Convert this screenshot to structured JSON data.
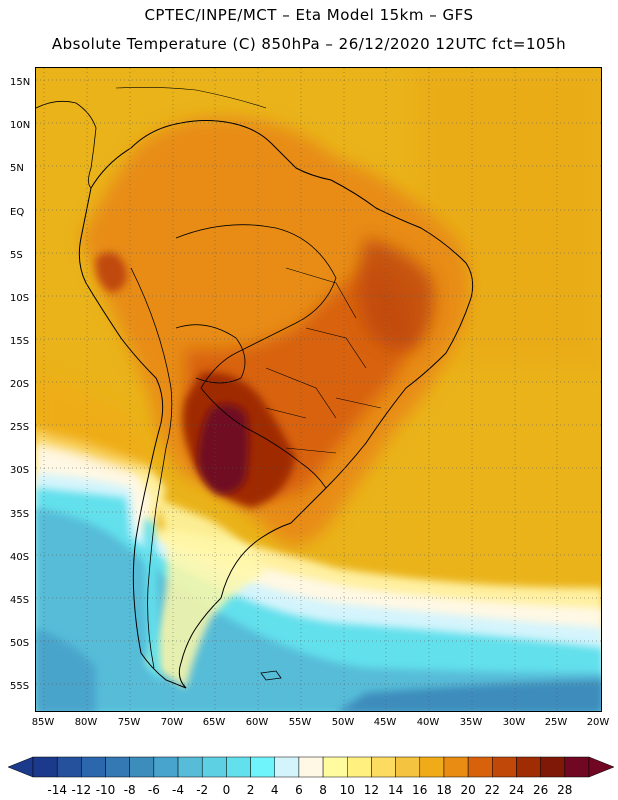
{
  "header": {
    "line1": "CPTEC/INPE/MCT –  Eta Model 15km – GFS",
    "line2": "Absolute Temperature (C) 850hPa – 26/12/2020 12UTC fct=105h"
  },
  "axes": {
    "lat_labels": [
      "15N",
      "10N",
      "5N",
      "EQ",
      "5S",
      "10S",
      "15S",
      "20S",
      "25S",
      "30S",
      "35S",
      "40S",
      "45S",
      "50S",
      "55S"
    ],
    "lon_labels": [
      "85W",
      "80W",
      "75W",
      "70W",
      "65W",
      "60W",
      "55W",
      "50W",
      "45W",
      "40W",
      "35W",
      "30W",
      "25W",
      "20W"
    ]
  },
  "legend": {
    "labels": [
      "-14",
      "-12",
      "-10",
      "-8",
      "-6",
      "-4",
      "-2",
      "0",
      "2",
      "4",
      "6",
      "8",
      "10",
      "12",
      "14",
      "16",
      "18",
      "20",
      "22",
      "24",
      "26",
      "28"
    ],
    "colors": [
      "#1c3a8c",
      "#24509c",
      "#2c66ac",
      "#3478b4",
      "#3c8cbc",
      "#48a4cc",
      "#56bcd8",
      "#5ed0e4",
      "#62e0ec",
      "#70f4fc",
      "#d4f4fc",
      "#fff8e4",
      "#fffca0",
      "#fff080",
      "#fcdc60",
      "#f4c440",
      "#f0ac18",
      "#e88c14",
      "#d8620c",
      "#c04808",
      "#a02c04",
      "#801808",
      "#700824"
    ]
  },
  "colors": {
    "ocean_base": "#eab31a",
    "frame": "#000000"
  }
}
